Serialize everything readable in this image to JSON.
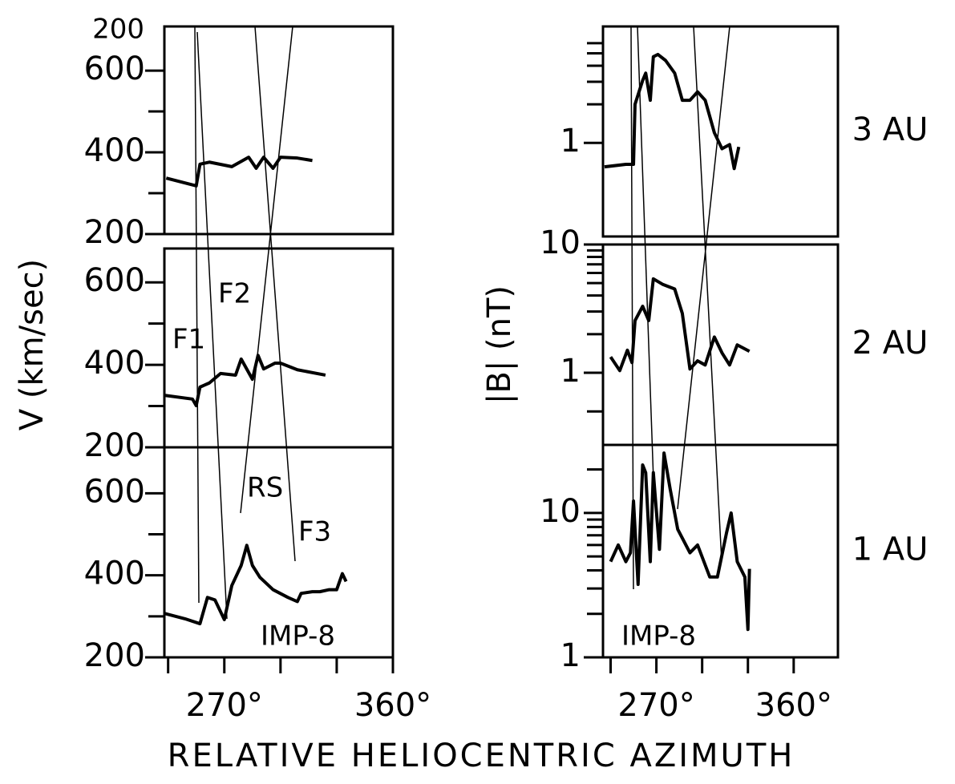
{
  "xlabel": "RELATIVE HELIOCENTRIC AZIMUTH",
  "chart_data": [
    {
      "type": "line",
      "xlim": [
        238,
        360
      ],
      "ylim": [
        200,
        708
      ],
      "yticks": [
        200,
        400,
        600
      ],
      "yminorticks": [
        300,
        500
      ],
      "annotations": [
        "200"
      ],
      "series": [
        {
          "color": "#000000",
          "x": [
            239,
            255,
            257,
            262,
            274,
            283,
            287,
            291,
            296,
            300,
            309,
            317
          ],
          "values": [
            337,
            318,
            371,
            376,
            365,
            388,
            361,
            388,
            361,
            388,
            386,
            380
          ]
        }
      ]
    },
    {
      "type": "line",
      "xlim": [
        238,
        360
      ],
      "ylim": [
        200,
        682
      ],
      "yticks": [
        200,
        400,
        600
      ],
      "yminorticks": [
        300,
        500
      ],
      "ylabel": "V (km/sec)",
      "annotations": [
        "F1",
        "F2"
      ],
      "series": [
        {
          "color": "#000000",
          "x": [
            238,
            253,
            255,
            257,
            262,
            268,
            276,
            279,
            285,
            288,
            291,
            297,
            300,
            309,
            324
          ],
          "values": [
            326,
            317,
            301,
            346,
            356,
            379,
            375,
            414,
            365,
            423,
            390,
            404,
            404,
            388,
            375
          ]
        }
      ]
    },
    {
      "type": "line",
      "xlim": [
        238,
        360
      ],
      "ylim": [
        200,
        712
      ],
      "yticks": [
        200,
        400,
        600
      ],
      "yminorticks": [
        300,
        500
      ],
      "annotations": [
        "RS",
        "F3",
        "IMP-8"
      ],
      "xticks": [
        {
          "value": 270,
          "label": "270°"
        },
        {
          "value": 360,
          "label": "360°"
        }
      ],
      "xminorticks": [
        240,
        300,
        330
      ],
      "series": [
        {
          "color": "#000000",
          "x": [
            238,
            249,
            257,
            261,
            265,
            270,
            274,
            279,
            282,
            285,
            289,
            296,
            304,
            309,
            311,
            317,
            321,
            326,
            330,
            333,
            335
          ],
          "values": [
            307,
            294,
            282,
            346,
            340,
            292,
            375,
            424,
            473,
            424,
            395,
            365,
            346,
            336,
            356,
            360,
            360,
            365,
            365,
            404,
            385
          ]
        }
      ]
    },
    {
      "type": "line",
      "log": true,
      "xlim": [
        235,
        389
      ],
      "ylim": [
        0.186,
        8.1
      ],
      "yticks": [
        1
      ],
      "yminorticks": [
        2,
        3,
        4,
        5,
        6
      ],
      "side_label": "3 AU",
      "series": [
        {
          "color": "#000000",
          "x": [
            236,
            250,
            255,
            256,
            261,
            263,
            266,
            268,
            271,
            276,
            282,
            287,
            292,
            297,
            302,
            308,
            313,
            318,
            321,
            324
          ],
          "values": [
            0.65,
            0.68,
            0.68,
            2.0,
            3.07,
            3.5,
            2.15,
            4.7,
            4.9,
            4.4,
            3.5,
            2.15,
            2.15,
            2.5,
            2.15,
            1.2,
            0.9,
            0.97,
            0.63,
            0.93
          ]
        }
      ]
    },
    {
      "type": "line",
      "log": true,
      "xlim": [
        235,
        389
      ],
      "ylim": [
        0.274,
        10
      ],
      "yticks": [
        1,
        10
      ],
      "yminorticks": [
        0.5,
        2,
        3,
        4,
        5,
        6,
        7,
        8,
        9
      ],
      "ylabel": "|B| (nT)",
      "side_label": "2 AU",
      "series": [
        {
          "color": "#000000",
          "x": [
            240,
            246,
            251,
            254,
            256,
            261,
            265,
            268,
            274,
            282,
            287,
            292,
            297,
            302,
            308,
            313,
            318,
            323,
            331
          ],
          "values": [
            1.33,
            1.04,
            1.5,
            1.2,
            2.55,
            3.3,
            2.55,
            5.4,
            4.9,
            4.5,
            2.9,
            1.07,
            1.24,
            1.15,
            1.9,
            1.43,
            1.15,
            1.65,
            1.47
          ]
        }
      ]
    },
    {
      "type": "line",
      "log": true,
      "xlim": [
        235,
        389
      ],
      "ylim": [
        1,
        29.6
      ],
      "yticks": [
        1,
        10
      ],
      "yminorticks": [
        2,
        3,
        4,
        5,
        6,
        7,
        8,
        9,
        20
      ],
      "side_label": "1 AU",
      "annotations": [
        "IMP-8"
      ],
      "xticks": [
        {
          "value": 270,
          "label": "270°"
        },
        {
          "value": 360,
          "label": "360°"
        }
      ],
      "xminorticks": [
        240,
        300,
        330
      ],
      "series": [
        {
          "color": "#000000",
          "x": [
            240,
            245,
            250,
            253,
            255,
            258,
            261,
            263,
            266,
            268,
            272,
            275,
            279,
            284,
            292,
            297,
            305,
            310,
            316,
            319,
            323,
            328,
            330,
            331
          ],
          "values": [
            4.6,
            6.0,
            4.6,
            5.3,
            12.1,
            3.2,
            21.5,
            19,
            4.6,
            19,
            5.6,
            26,
            14.7,
            7.7,
            5.3,
            6.0,
            3.6,
            3.6,
            7.3,
            10,
            4.6,
            3.6,
            1.56,
            4.1
          ]
        }
      ]
    }
  ]
}
